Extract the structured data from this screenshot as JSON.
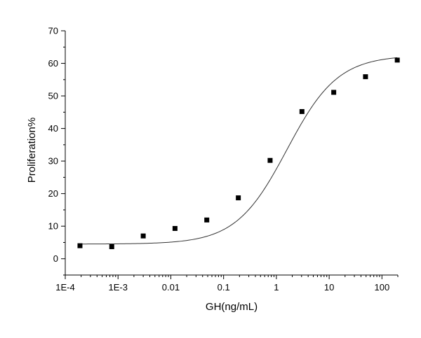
{
  "chart_data": {
    "type": "scatter",
    "title": "",
    "xlabel": "GH(ng/mL)",
    "ylabel": "Proliferation%",
    "x_scale": "log",
    "xlim": [
      0.0001,
      200
    ],
    "ylim": [
      -5,
      70
    ],
    "grid": false,
    "x_ticks": [
      {
        "value": 0.0001,
        "label": "1E-4"
      },
      {
        "value": 0.001,
        "label": "1E-3"
      },
      {
        "value": 0.01,
        "label": "0.01"
      },
      {
        "value": 0.1,
        "label": "0.1"
      },
      {
        "value": 1,
        "label": "1"
      },
      {
        "value": 10,
        "label": "10"
      },
      {
        "value": 100,
        "label": "100"
      }
    ],
    "y_ticks": [
      {
        "value": 0,
        "label": "0"
      },
      {
        "value": 10,
        "label": "10"
      },
      {
        "value": 20,
        "label": "20"
      },
      {
        "value": 30,
        "label": "30"
      },
      {
        "value": 40,
        "label": "40"
      },
      {
        "value": 50,
        "label": "50"
      },
      {
        "value": 60,
        "label": "60"
      },
      {
        "value": 70,
        "label": "70"
      }
    ],
    "points": [
      {
        "x": 0.00019,
        "y": 4.0
      },
      {
        "x": 0.00076,
        "y": 3.7
      },
      {
        "x": 0.003,
        "y": 7.0
      },
      {
        "x": 0.012,
        "y": 9.3
      },
      {
        "x": 0.048,
        "y": 11.9
      },
      {
        "x": 0.19,
        "y": 18.7
      },
      {
        "x": 0.76,
        "y": 30.2
      },
      {
        "x": 3.05,
        "y": 45.2
      },
      {
        "x": 12.2,
        "y": 51.1
      },
      {
        "x": 48.8,
        "y": 55.9
      },
      {
        "x": 195,
        "y": 61.0
      }
    ],
    "fit_curve": {
      "type": "logistic",
      "bottom": 4.5,
      "top": 62.5,
      "log_ec50": 0.2,
      "hill_slope": 0.9
    },
    "marker_color": "#000000",
    "line_color": "#333333"
  }
}
